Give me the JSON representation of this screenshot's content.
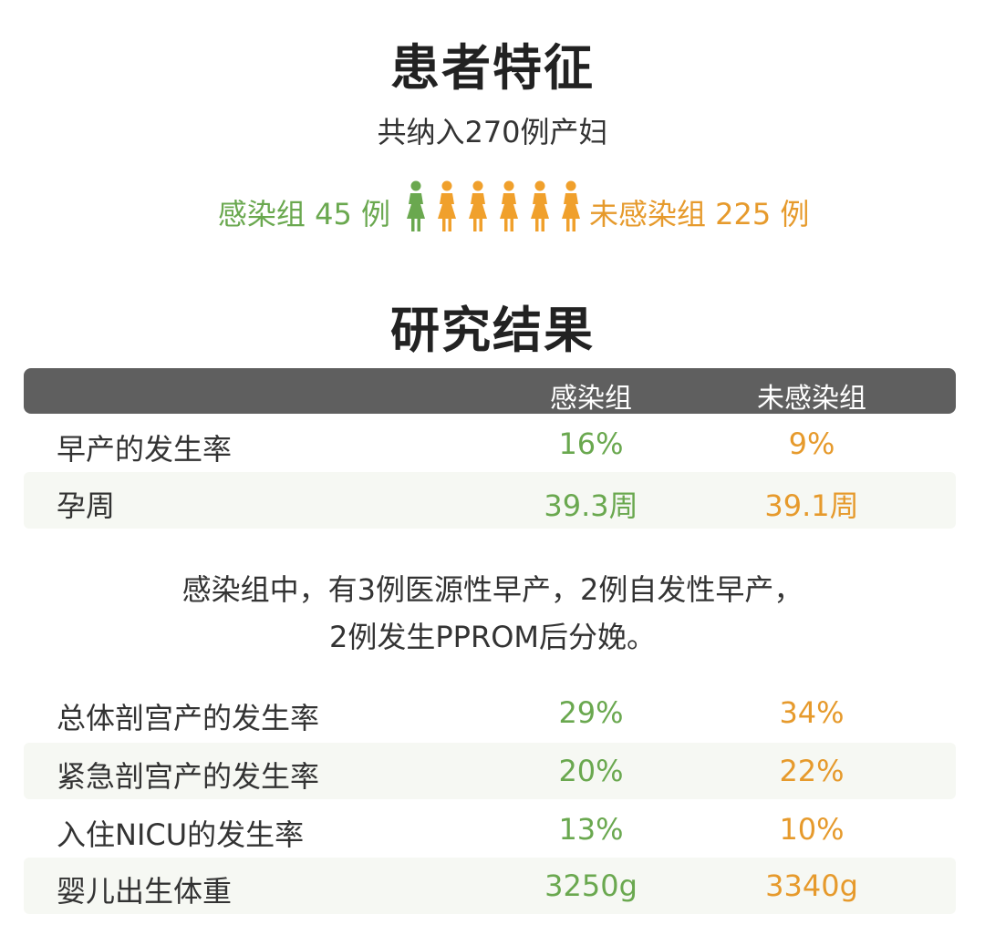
{
  "sections": {
    "characteristics_title": "患者特征",
    "results_title": "研究结果"
  },
  "summary": {
    "total_text": "共纳入270例产妇",
    "infected_label": "感染组 45 例",
    "uninfected_label": "未感染组 225 例"
  },
  "icons": {
    "people": [
      {
        "name": "person-icon",
        "group": "infected",
        "color": "#6aa84f"
      },
      {
        "name": "person-icon",
        "group": "uninfected",
        "color": "#f0a02c"
      },
      {
        "name": "person-icon",
        "group": "uninfected",
        "color": "#f0a02c"
      },
      {
        "name": "person-icon",
        "group": "uninfected",
        "color": "#f0a02c"
      },
      {
        "name": "person-icon",
        "group": "uninfected",
        "color": "#f0a02c"
      },
      {
        "name": "person-icon",
        "group": "uninfected",
        "color": "#f0a02c"
      }
    ]
  },
  "colors": {
    "infected": "#6aa84f",
    "uninfected": "#e69a2c",
    "header_bg": "#5f5f5f",
    "row_shade": "#f6f8f3"
  },
  "table": {
    "headers": [
      "",
      "感染组",
      "未感染组"
    ],
    "rows_top": [
      {
        "label": "早产的发生率",
        "infected": "16%",
        "uninfected": "9%"
      },
      {
        "label": "孕周",
        "infected": "39.3周",
        "uninfected": "39.1周"
      }
    ],
    "note_lines": [
      "感染组中，有3例医源性早产，2例自发性早产，",
      "2例发生PPROM后分娩。"
    ],
    "rows_bottom": [
      {
        "label": "总体剖宫产的发生率",
        "infected": "29%",
        "uninfected": "34%"
      },
      {
        "label": "紧急剖宫产的发生率",
        "infected": "20%",
        "uninfected": "22%"
      },
      {
        "label": "入住NICU的发生率",
        "infected": "13%",
        "uninfected": "10%"
      },
      {
        "label": "婴儿出生体重",
        "infected": "3250g",
        "uninfected": "3340g"
      }
    ]
  }
}
